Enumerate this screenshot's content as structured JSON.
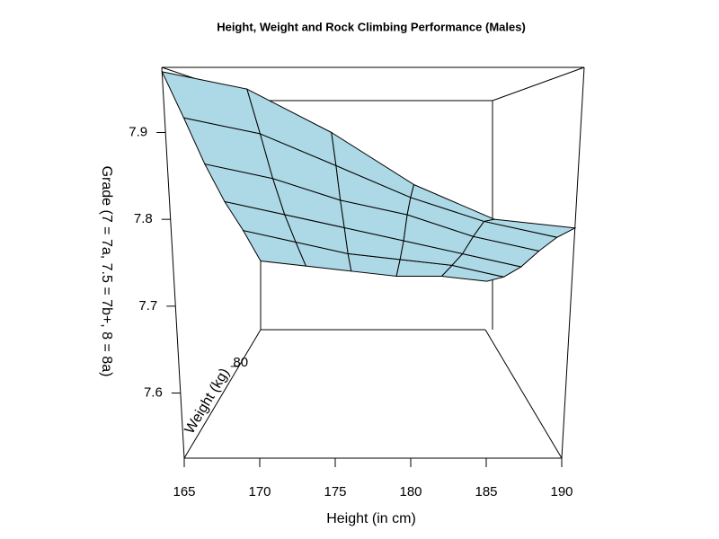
{
  "chart_data": {
    "type": "surface",
    "title": "Height, Weight and Rock Climbing Performance (Males)",
    "xlabel": "Height (in cm)",
    "ylabel": "Weight (kg)",
    "zlabel": "Grade (7 = 7a, 7.5 = 7b+, 8 = 8a)",
    "x": [
      165,
      170,
      175,
      180,
      185,
      190
    ],
    "y": [
      55,
      62,
      69,
      76,
      83,
      90
    ],
    "z": [
      [
        7.97,
        7.95,
        7.9,
        7.84,
        7.8,
        7.79
      ],
      [
        7.92,
        7.9,
        7.86,
        7.82,
        7.79,
        7.77
      ],
      [
        7.86,
        7.84,
        7.81,
        7.79,
        7.76,
        7.74
      ],
      [
        7.8,
        7.78,
        7.76,
        7.74,
        7.72,
        7.7
      ],
      [
        7.74,
        7.72,
        7.7,
        7.69,
        7.68,
        7.66
      ],
      [
        7.66,
        7.65,
        7.64,
        7.63,
        7.63,
        7.62
      ]
    ],
    "xlim": [
      165,
      190
    ],
    "xticks": [
      165,
      170,
      175,
      180,
      185,
      190
    ],
    "ylim": [
      55,
      90
    ],
    "yticks": [
      80
    ],
    "zlim": [
      7.525,
      7.975
    ],
    "zticks": [
      7.6,
      7.7,
      7.8,
      7.9
    ],
    "color": "#add8e6"
  }
}
